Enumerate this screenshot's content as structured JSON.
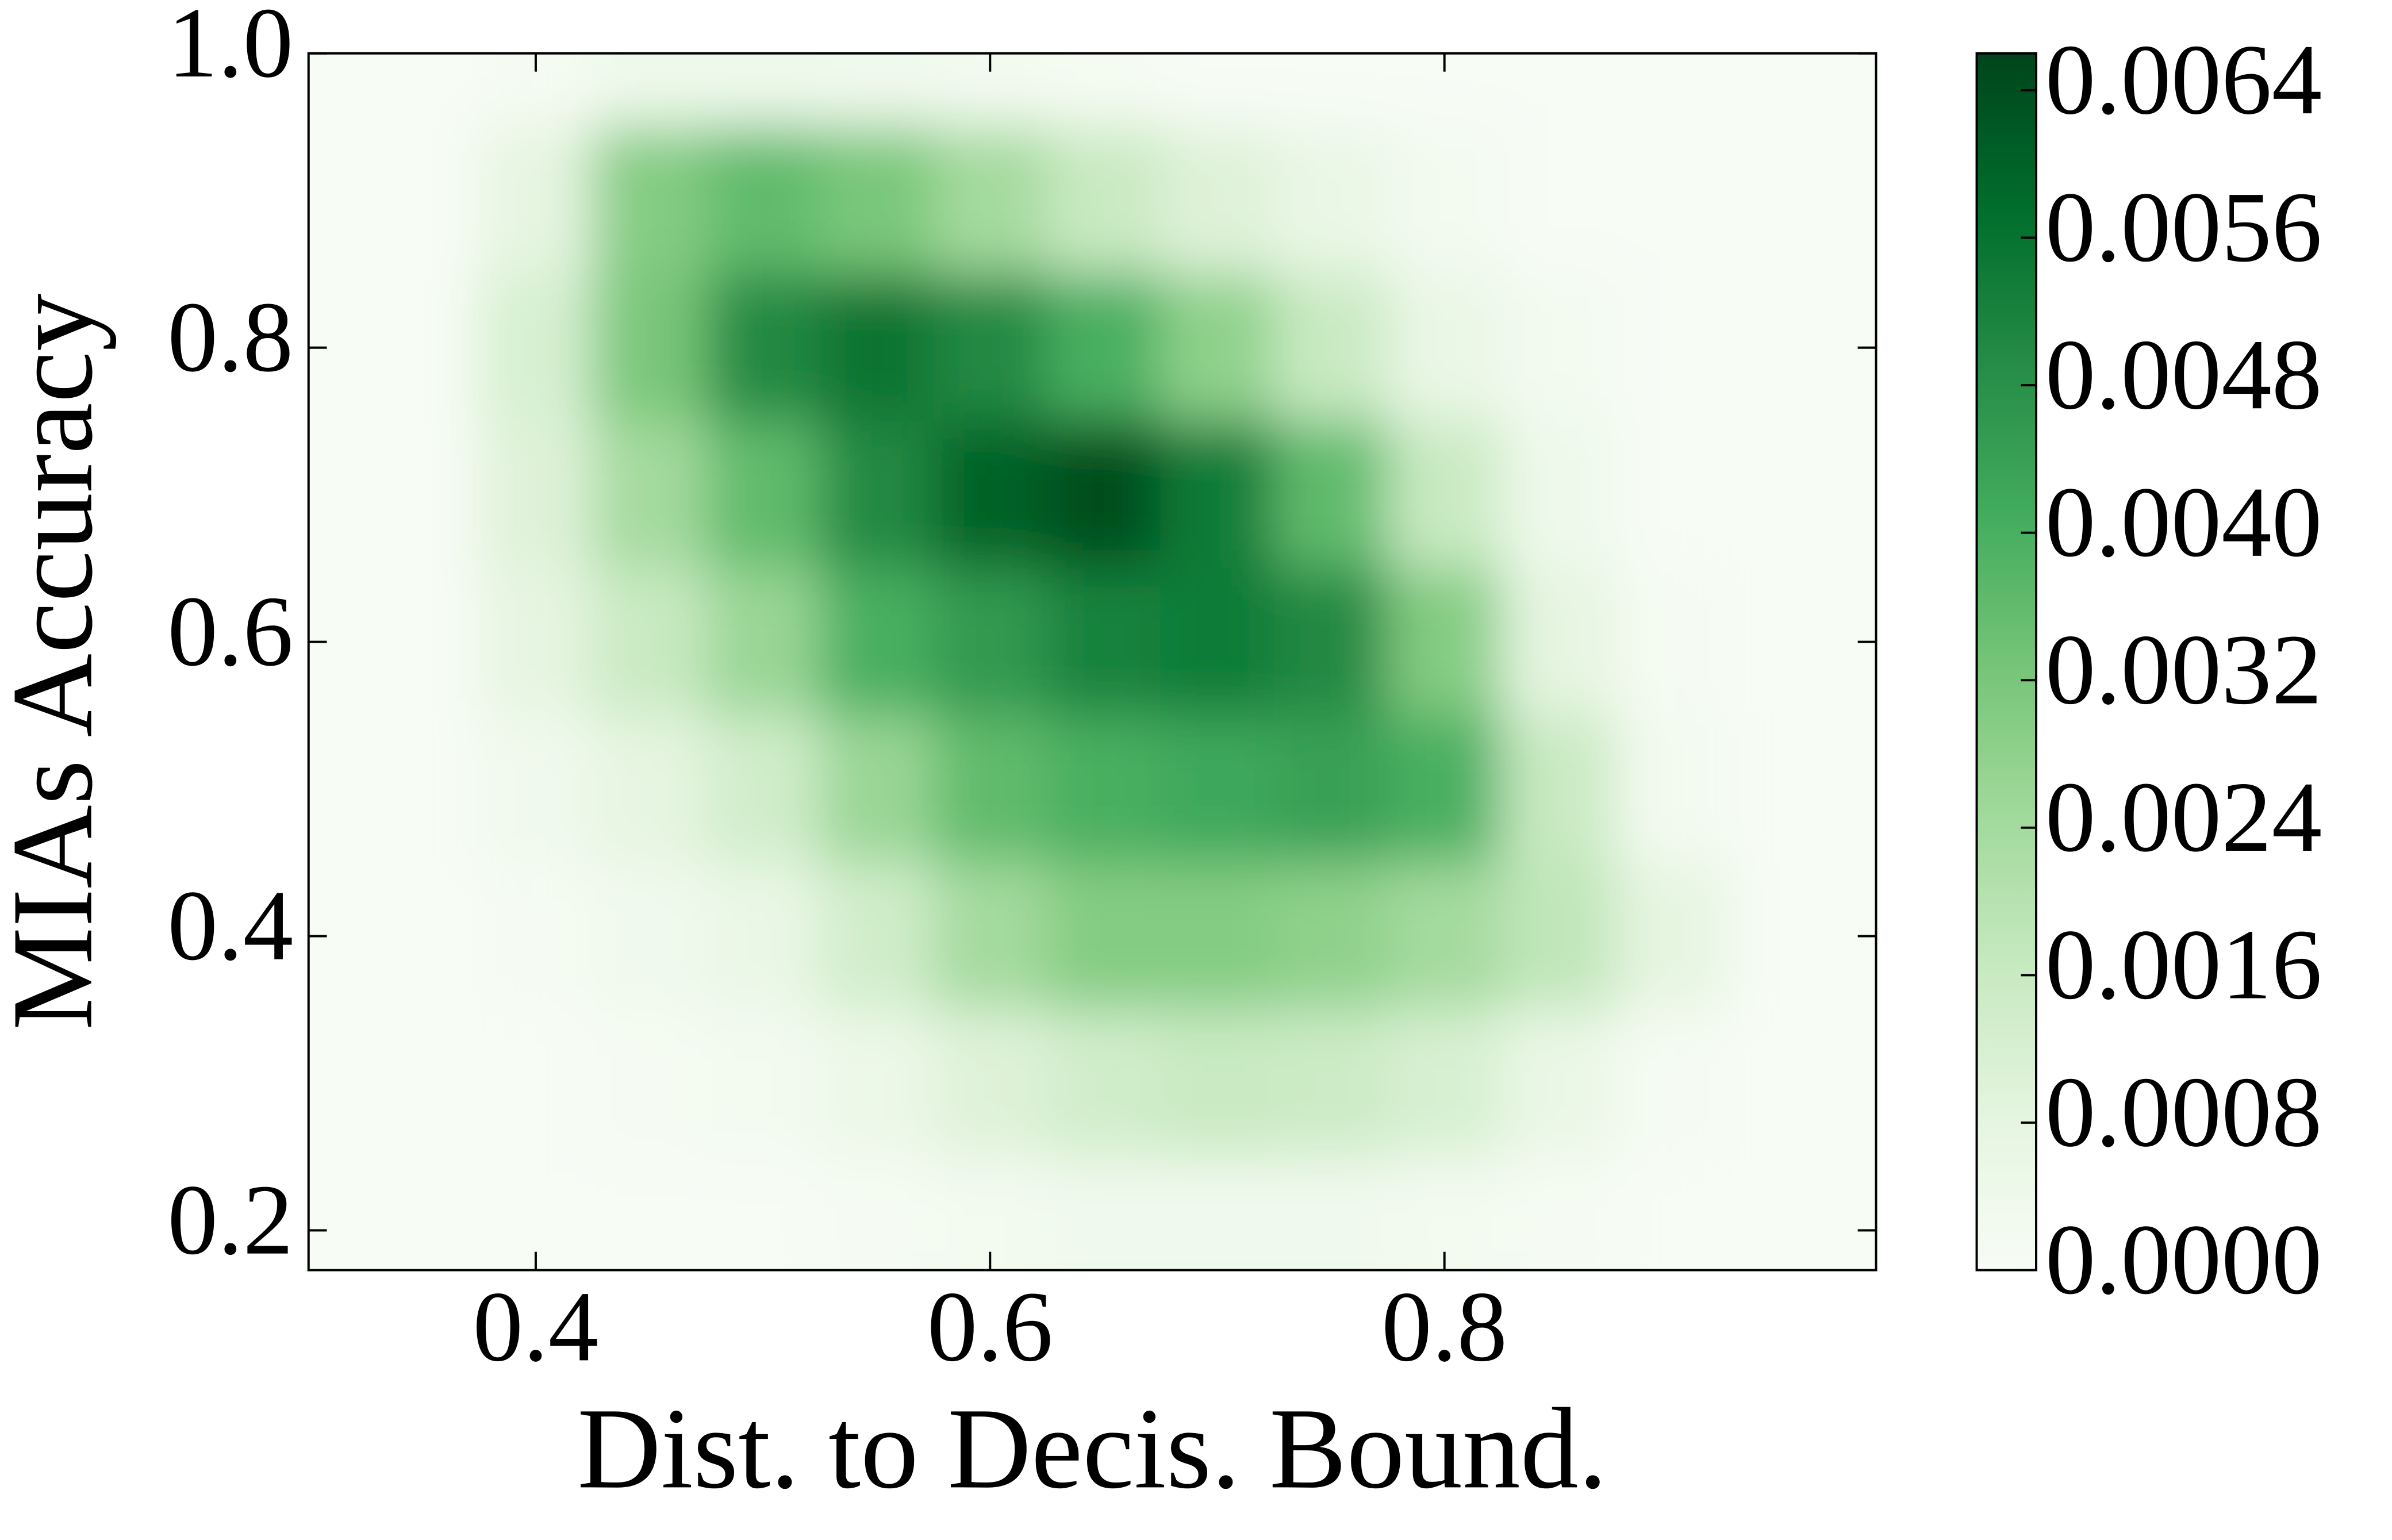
{
  "chart_data": {
    "type": "density",
    "x_label": "Dist. to Decis. Bound.",
    "y_label": "MIAs Accuracy",
    "xlim": [
      0.3,
      0.99
    ],
    "ylim": [
      0.173,
      1.0
    ],
    "xticks": [
      0.4,
      0.6,
      0.8
    ],
    "yticks": [
      0.2,
      0.4,
      0.6,
      0.8,
      {
        "value": 1,
        "label": "1.0"
      }
    ],
    "x": [
      0.4,
      0.45,
      0.5,
      0.55,
      0.6,
      0.65,
      0.7,
      0.75,
      0.8,
      0.85,
      0.9
    ],
    "y": [
      0.2,
      0.3,
      0.4,
      0.5,
      0.6,
      0.7,
      0.8,
      0.9,
      {
        "value": 1,
        "label": "1.0"
      }
    ],
    "z": [
      [
        0,
        0,
        0,
        0.0001,
        0.0002,
        0.0003,
        0.0003,
        0.0003,
        0.0002,
        0.0001,
        0
      ],
      [
        0,
        0.0001,
        0.0002,
        0.0005,
        0.001,
        0.0014,
        0.0016,
        0.0015,
        0.0012,
        0.0006,
        0.0001
      ],
      [
        0.0001,
        0.0003,
        0.0006,
        0.0014,
        0.0024,
        0.003,
        0.003,
        0.0028,
        0.0024,
        0.0018,
        0.0008
      ],
      [
        0.0003,
        0.0008,
        0.0014,
        0.0026,
        0.0036,
        0.004,
        0.0042,
        0.0044,
        0.004,
        0.0016,
        0.0002
      ],
      [
        0.0008,
        0.0016,
        0.0026,
        0.004,
        0.0046,
        0.0052,
        0.0054,
        0.005,
        0.003,
        0.0008,
        0.0001
      ],
      [
        0.001,
        0.0024,
        0.0036,
        0.005,
        0.006,
        0.0064,
        0.0054,
        0.0036,
        0.0016,
        0.0004,
        0
      ],
      [
        0.0012,
        0.0032,
        0.005,
        0.0056,
        0.005,
        0.004,
        0.0028,
        0.0016,
        0.0006,
        0.0002,
        0
      ],
      [
        0.0008,
        0.003,
        0.0036,
        0.0032,
        0.0024,
        0.0016,
        0.001,
        0.0006,
        0.0002,
        0,
        0
      ],
      [
        0.0001,
        0.0004,
        0.0004,
        0.0003,
        0.0002,
        0.0001,
        0,
        0,
        0,
        0,
        0
      ]
    ],
    "zlim": [
      0,
      0.0066
    ],
    "zticks": [
      {
        "value": 0,
        "label": "0.0000"
      },
      {
        "value": 0.0008,
        "label": "0.0008"
      },
      {
        "value": 0.0016,
        "label": "0.0016"
      },
      {
        "value": 0.0024,
        "label": "0.0024"
      },
      {
        "value": 0.0032,
        "label": "0.0032"
      },
      {
        "value": 0.004,
        "label": "0.0040"
      },
      {
        "value": 0.0048,
        "label": "0.0048"
      },
      {
        "value": 0.0056,
        "label": "0.0056"
      },
      {
        "value": 0.0064,
        "label": "0.0064"
      }
    ],
    "colormap": [
      "#f7fcf5",
      "#e5f5e0",
      "#c7e9c0",
      "#a1d99b",
      "#74c476",
      "#41ab5d",
      "#238b45",
      "#006d2c",
      "#00441b"
    ]
  }
}
